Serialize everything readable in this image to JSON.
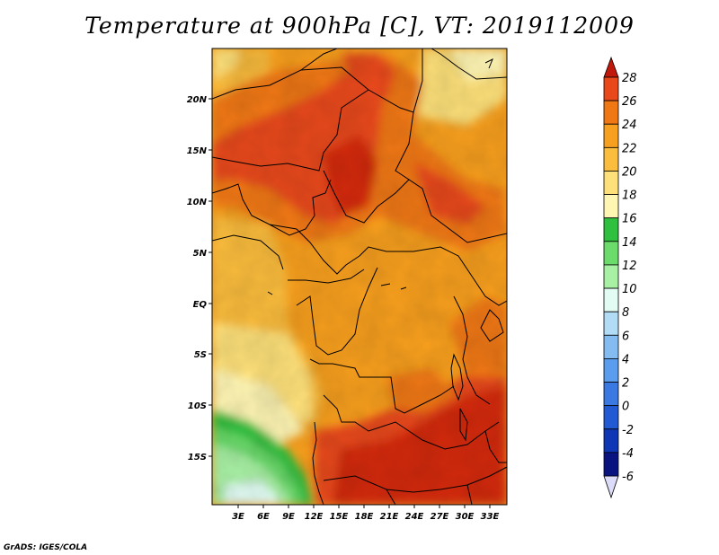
{
  "title": "Temperature at 900hPa [C], VT: 2019112009",
  "credit": "GrADS: IGES/COLA",
  "lat_labels": [
    "20N",
    "15N",
    "10N",
    "5N",
    "EQ",
    "5S",
    "10S",
    "15S"
  ],
  "lon_labels": [
    "3E",
    "6E",
    "9E",
    "12E",
    "15E",
    "18E",
    "21E",
    "24E",
    "27E",
    "30E",
    "33E"
  ],
  "colorbar": {
    "labels": [
      "28",
      "26",
      "24",
      "22",
      "20",
      "18",
      "16",
      "14",
      "12",
      "10",
      "8",
      "6",
      "4",
      "2",
      "0",
      "-2",
      "-4",
      "-6"
    ],
    "colors": [
      "#d42a0a",
      "#e8481a",
      "#f07814",
      "#f79f1e",
      "#fbbd3e",
      "#fde07a",
      "#fff6b4",
      "#30c040",
      "#6bdc6b",
      "#a8f0a4",
      "#e2fcf4",
      "#b2dcf6",
      "#84bcf2",
      "#5a9cee",
      "#3a78e2",
      "#225ad4",
      "#0f36b4",
      "#0a1480"
    ],
    "top_arrow_color": "#c0180a",
    "bottom_arrow_color": "#dcdcf8"
  }
}
